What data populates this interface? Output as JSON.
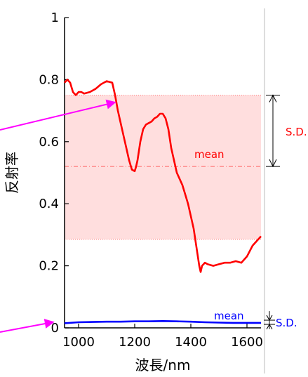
{
  "chart_data": {
    "type": "line",
    "xlabel": "波長/nm",
    "ylabel": "反射率",
    "xlim": [
      950,
      1650
    ],
    "ylim": [
      0,
      1
    ],
    "x_ticks": [
      "1000",
      "1200",
      "1400",
      "1600"
    ],
    "y_ticks": [
      "0",
      "0.2",
      "0.4",
      "0.6",
      "0.8",
      "1"
    ],
    "series": [
      {
        "color": "#ff0000",
        "x": [
          950,
          960,
          970,
          980,
          990,
          1000,
          1010,
          1020,
          1040,
          1060,
          1080,
          1100,
          1120,
          1130,
          1140,
          1150,
          1160,
          1170,
          1180,
          1190,
          1200,
          1205,
          1210,
          1220,
          1230,
          1240,
          1250,
          1260,
          1270,
          1280,
          1290,
          1300,
          1310,
          1320,
          1330,
          1340,
          1350,
          1360,
          1370,
          1380,
          1390,
          1400,
          1410,
          1420,
          1430,
          1435,
          1440,
          1450,
          1460,
          1480,
          1500,
          1520,
          1540,
          1560,
          1580,
          1600,
          1620,
          1640,
          1650
        ],
        "y": [
          0.79,
          0.8,
          0.79,
          0.76,
          0.75,
          0.76,
          0.76,
          0.755,
          0.76,
          0.77,
          0.785,
          0.795,
          0.79,
          0.75,
          0.7,
          0.66,
          0.62,
          0.58,
          0.54,
          0.51,
          0.505,
          0.52,
          0.54,
          0.6,
          0.64,
          0.655,
          0.66,
          0.665,
          0.675,
          0.68,
          0.69,
          0.69,
          0.675,
          0.64,
          0.58,
          0.54,
          0.5,
          0.48,
          0.46,
          0.43,
          0.4,
          0.36,
          0.32,
          0.26,
          0.2,
          0.18,
          0.2,
          0.21,
          0.205,
          0.2,
          0.205,
          0.21,
          0.21,
          0.215,
          0.21,
          0.23,
          0.265,
          0.285,
          0.295
        ]
      },
      {
        "color": "#0000ff",
        "x": [
          950,
          1000,
          1050,
          1100,
          1150,
          1200,
          1250,
          1300,
          1350,
          1400,
          1450,
          1500,
          1550,
          1600,
          1650
        ],
        "y": [
          0.015,
          0.018,
          0.019,
          0.02,
          0.02,
          0.021,
          0.021,
          0.022,
          0.021,
          0.02,
          0.018,
          0.017,
          0.016,
          0.016,
          0.016
        ]
      }
    ],
    "sd_band": {
      "mean": 0.52,
      "upper": 0.75,
      "lower": 0.285,
      "color": "#ff0000"
    },
    "blue_band": {
      "mean": 0.018,
      "upper": 0.045,
      "lower": 0.005,
      "color": "#0000ff"
    },
    "annotations": {
      "red_mean_label": "mean",
      "red_sd_label": "S.D.",
      "blue_mean_label": "mean",
      "blue_sd_label": "S.D."
    },
    "arrow_color": "#ff00ff",
    "grid": false
  }
}
